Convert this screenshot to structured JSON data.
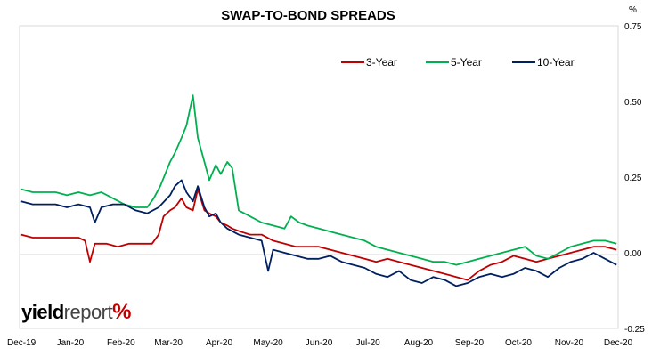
{
  "chart_data": {
    "type": "line",
    "title": "SWAP-TO-BOND SPREADS",
    "y_unit": "%",
    "ylim": [
      -0.25,
      0.75
    ],
    "y_ticks": [
      "0.75",
      "0.50",
      "0.25",
      "0.00",
      "-0.25"
    ],
    "y_tick_values": [
      0.75,
      0.5,
      0.25,
      0.0,
      -0.25
    ],
    "x_ticks": [
      "Dec-19",
      "Jan-20",
      "Feb-20",
      "Mar-20",
      "Apr-20",
      "May-20",
      "Jun-20",
      "Jul-20",
      "Aug-20",
      "Sep-20",
      "Oct-20",
      "Nov-20",
      "Dec-20"
    ],
    "x_tick_dates": [
      "2019-12-01",
      "2020-01-01",
      "2020-02-01",
      "2020-03-01",
      "2020-04-01",
      "2020-05-01",
      "2020-06-01",
      "2020-07-01",
      "2020-08-01",
      "2020-09-01",
      "2020-10-01",
      "2020-11-01",
      "2020-12-01"
    ],
    "xlim": [
      "2019-12-01",
      "2020-12-01"
    ],
    "grid": false,
    "legend_position": "top-right",
    "series": [
      {
        "name": "3-Year",
        "color": "#c00000",
        "points": [
          [
            "2019-12-02",
            0.06
          ],
          [
            "2019-12-09",
            0.05
          ],
          [
            "2019-12-16",
            0.05
          ],
          [
            "2019-12-23",
            0.05
          ],
          [
            "2019-12-30",
            0.05
          ],
          [
            "2020-01-06",
            0.05
          ],
          [
            "2020-01-10",
            0.04
          ],
          [
            "2020-01-13",
            -0.03
          ],
          [
            "2020-01-16",
            0.03
          ],
          [
            "2020-01-23",
            0.03
          ],
          [
            "2020-01-30",
            0.02
          ],
          [
            "2020-02-06",
            0.03
          ],
          [
            "2020-02-13",
            0.03
          ],
          [
            "2020-02-20",
            0.03
          ],
          [
            "2020-02-24",
            0.06
          ],
          [
            "2020-02-27",
            0.12
          ],
          [
            "2020-03-02",
            0.14
          ],
          [
            "2020-03-05",
            0.15
          ],
          [
            "2020-03-09",
            0.18
          ],
          [
            "2020-03-12",
            0.15
          ],
          [
            "2020-03-16",
            0.14
          ],
          [
            "2020-03-19",
            0.21
          ],
          [
            "2020-03-23",
            0.14
          ],
          [
            "2020-03-26",
            0.13
          ],
          [
            "2020-03-30",
            0.12
          ],
          [
            "2020-04-02",
            0.1
          ],
          [
            "2020-04-06",
            0.09
          ],
          [
            "2020-04-09",
            0.08
          ],
          [
            "2020-04-14",
            0.07
          ],
          [
            "2020-04-20",
            0.06
          ],
          [
            "2020-04-27",
            0.06
          ],
          [
            "2020-05-04",
            0.04
          ],
          [
            "2020-05-11",
            0.03
          ],
          [
            "2020-05-18",
            0.02
          ],
          [
            "2020-05-25",
            0.02
          ],
          [
            "2020-06-01",
            0.02
          ],
          [
            "2020-06-08",
            0.01
          ],
          [
            "2020-06-15",
            0.0
          ],
          [
            "2020-06-22",
            -0.01
          ],
          [
            "2020-06-29",
            -0.02
          ],
          [
            "2020-07-06",
            -0.03
          ],
          [
            "2020-07-13",
            -0.02
          ],
          [
            "2020-07-20",
            -0.03
          ],
          [
            "2020-07-27",
            -0.04
          ],
          [
            "2020-08-03",
            -0.05
          ],
          [
            "2020-08-10",
            -0.06
          ],
          [
            "2020-08-17",
            -0.07
          ],
          [
            "2020-08-24",
            -0.08
          ],
          [
            "2020-08-31",
            -0.09
          ],
          [
            "2020-09-07",
            -0.06
          ],
          [
            "2020-09-14",
            -0.04
          ],
          [
            "2020-09-21",
            -0.03
          ],
          [
            "2020-09-28",
            -0.01
          ],
          [
            "2020-10-05",
            -0.02
          ],
          [
            "2020-10-12",
            -0.03
          ],
          [
            "2020-10-19",
            -0.02
          ],
          [
            "2020-10-26",
            -0.01
          ],
          [
            "2020-11-02",
            0.0
          ],
          [
            "2020-11-09",
            0.01
          ],
          [
            "2020-11-16",
            0.02
          ],
          [
            "2020-11-23",
            0.02
          ],
          [
            "2020-11-30",
            0.01
          ]
        ]
      },
      {
        "name": "5-Year",
        "color": "#00b050",
        "points": [
          [
            "2019-12-02",
            0.21
          ],
          [
            "2019-12-09",
            0.2
          ],
          [
            "2019-12-16",
            0.2
          ],
          [
            "2019-12-23",
            0.2
          ],
          [
            "2019-12-30",
            0.19
          ],
          [
            "2020-01-06",
            0.2
          ],
          [
            "2020-01-13",
            0.19
          ],
          [
            "2020-01-20",
            0.2
          ],
          [
            "2020-01-27",
            0.18
          ],
          [
            "2020-02-03",
            0.16
          ],
          [
            "2020-02-10",
            0.15
          ],
          [
            "2020-02-17",
            0.15
          ],
          [
            "2020-02-21",
            0.18
          ],
          [
            "2020-02-25",
            0.22
          ],
          [
            "2020-03-02",
            0.3
          ],
          [
            "2020-03-05",
            0.33
          ],
          [
            "2020-03-09",
            0.38
          ],
          [
            "2020-03-12",
            0.42
          ],
          [
            "2020-03-16",
            0.52
          ],
          [
            "2020-03-19",
            0.38
          ],
          [
            "2020-03-23",
            0.3
          ],
          [
            "2020-03-26",
            0.24
          ],
          [
            "2020-03-30",
            0.29
          ],
          [
            "2020-04-02",
            0.26
          ],
          [
            "2020-04-06",
            0.3
          ],
          [
            "2020-04-09",
            0.28
          ],
          [
            "2020-04-13",
            0.14
          ],
          [
            "2020-04-20",
            0.12
          ],
          [
            "2020-04-27",
            0.1
          ],
          [
            "2020-05-04",
            0.09
          ],
          [
            "2020-05-11",
            0.08
          ],
          [
            "2020-05-15",
            0.12
          ],
          [
            "2020-05-20",
            0.1
          ],
          [
            "2020-05-25",
            0.09
          ],
          [
            "2020-06-01",
            0.08
          ],
          [
            "2020-06-08",
            0.07
          ],
          [
            "2020-06-15",
            0.06
          ],
          [
            "2020-06-22",
            0.05
          ],
          [
            "2020-06-29",
            0.04
          ],
          [
            "2020-07-06",
            0.02
          ],
          [
            "2020-07-13",
            0.01
          ],
          [
            "2020-07-20",
            0.0
          ],
          [
            "2020-07-27",
            -0.01
          ],
          [
            "2020-08-03",
            -0.02
          ],
          [
            "2020-08-10",
            -0.03
          ],
          [
            "2020-08-17",
            -0.03
          ],
          [
            "2020-08-24",
            -0.04
          ],
          [
            "2020-08-31",
            -0.03
          ],
          [
            "2020-09-07",
            -0.02
          ],
          [
            "2020-09-14",
            -0.01
          ],
          [
            "2020-09-21",
            0.0
          ],
          [
            "2020-09-28",
            0.01
          ],
          [
            "2020-10-05",
            0.02
          ],
          [
            "2020-10-12",
            -0.01
          ],
          [
            "2020-10-19",
            -0.02
          ],
          [
            "2020-10-26",
            0.0
          ],
          [
            "2020-11-02",
            0.02
          ],
          [
            "2020-11-09",
            0.03
          ],
          [
            "2020-11-16",
            0.04
          ],
          [
            "2020-11-23",
            0.04
          ],
          [
            "2020-11-30",
            0.03
          ]
        ]
      },
      {
        "name": "10-Year",
        "color": "#002060",
        "points": [
          [
            "2019-12-02",
            0.17
          ],
          [
            "2019-12-09",
            0.16
          ],
          [
            "2019-12-16",
            0.16
          ],
          [
            "2019-12-23",
            0.16
          ],
          [
            "2019-12-30",
            0.15
          ],
          [
            "2020-01-06",
            0.16
          ],
          [
            "2020-01-13",
            0.15
          ],
          [
            "2020-01-16",
            0.1
          ],
          [
            "2020-01-20",
            0.15
          ],
          [
            "2020-01-27",
            0.16
          ],
          [
            "2020-02-03",
            0.16
          ],
          [
            "2020-02-10",
            0.14
          ],
          [
            "2020-02-17",
            0.13
          ],
          [
            "2020-02-24",
            0.15
          ],
          [
            "2020-03-02",
            0.19
          ],
          [
            "2020-03-05",
            0.22
          ],
          [
            "2020-03-09",
            0.24
          ],
          [
            "2020-03-12",
            0.2
          ],
          [
            "2020-03-16",
            0.17
          ],
          [
            "2020-03-19",
            0.22
          ],
          [
            "2020-03-23",
            0.15
          ],
          [
            "2020-03-26",
            0.12
          ],
          [
            "2020-03-30",
            0.13
          ],
          [
            "2020-04-02",
            0.1
          ],
          [
            "2020-04-06",
            0.08
          ],
          [
            "2020-04-13",
            0.06
          ],
          [
            "2020-04-20",
            0.05
          ],
          [
            "2020-04-27",
            0.04
          ],
          [
            "2020-05-01",
            -0.06
          ],
          [
            "2020-05-04",
            0.01
          ],
          [
            "2020-05-11",
            0.0
          ],
          [
            "2020-05-18",
            -0.01
          ],
          [
            "2020-05-25",
            -0.02
          ],
          [
            "2020-06-01",
            -0.02
          ],
          [
            "2020-06-08",
            -0.01
          ],
          [
            "2020-06-15",
            -0.03
          ],
          [
            "2020-06-22",
            -0.04
          ],
          [
            "2020-06-29",
            -0.05
          ],
          [
            "2020-07-06",
            -0.07
          ],
          [
            "2020-07-13",
            -0.08
          ],
          [
            "2020-07-20",
            -0.06
          ],
          [
            "2020-07-27",
            -0.09
          ],
          [
            "2020-08-03",
            -0.1
          ],
          [
            "2020-08-10",
            -0.08
          ],
          [
            "2020-08-17",
            -0.09
          ],
          [
            "2020-08-24",
            -0.11
          ],
          [
            "2020-08-31",
            -0.1
          ],
          [
            "2020-09-07",
            -0.08
          ],
          [
            "2020-09-14",
            -0.07
          ],
          [
            "2020-09-21",
            -0.08
          ],
          [
            "2020-09-28",
            -0.07
          ],
          [
            "2020-10-05",
            -0.05
          ],
          [
            "2020-10-12",
            -0.06
          ],
          [
            "2020-10-19",
            -0.08
          ],
          [
            "2020-10-26",
            -0.05
          ],
          [
            "2020-11-02",
            -0.03
          ],
          [
            "2020-11-09",
            -0.02
          ],
          [
            "2020-11-16",
            0.0
          ],
          [
            "2020-11-23",
            -0.02
          ],
          [
            "2020-11-30",
            -0.04
          ]
        ]
      }
    ]
  },
  "logo": {
    "word1": "yield",
    "word2": "report",
    "symbol": "%"
  }
}
